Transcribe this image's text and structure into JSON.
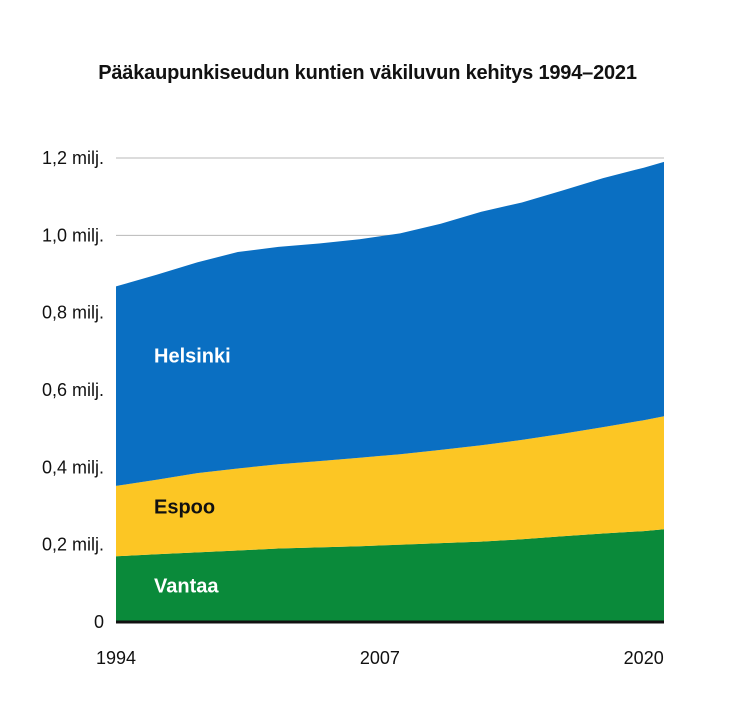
{
  "chart_data": {
    "type": "area",
    "stacked": true,
    "title": "Pääkaupunkiseudun kuntien väkiluvun kehitys 1994–2021",
    "xlabel": "",
    "ylabel": "",
    "x": [
      1994,
      1996,
      1998,
      2000,
      2002,
      2004,
      2006,
      2008,
      2010,
      2012,
      2014,
      2016,
      2018,
      2020,
      2021
    ],
    "xticks": [
      "1994",
      "2007",
      "2020"
    ],
    "yticks": [
      "0",
      "0,2 milj.",
      "0,4 milj.",
      "0,6 milj.",
      "0,8 milj.",
      "1,0 milj.",
      "1,2 milj."
    ],
    "ylim": [
      0,
      1.2
    ],
    "grid": true,
    "legend": "inline labels",
    "series": [
      {
        "name": "Vantaa",
        "color": "#0a8a3a",
        "label_color": "#ffffff",
        "values": [
          0.17,
          0.175,
          0.18,
          0.185,
          0.19,
          0.193,
          0.196,
          0.2,
          0.204,
          0.208,
          0.214,
          0.222,
          0.229,
          0.235,
          0.24
        ]
      },
      {
        "name": "Espoo",
        "color": "#fcc624",
        "label_color": "#111111",
        "values": [
          0.182,
          0.193,
          0.205,
          0.212,
          0.218,
          0.223,
          0.229,
          0.234,
          0.241,
          0.249,
          0.257,
          0.265,
          0.275,
          0.287,
          0.292
        ]
      },
      {
        "name": "Helsinki",
        "color": "#0a6fc2",
        "label_color": "#ffffff",
        "values": [
          0.516,
          0.53,
          0.545,
          0.56,
          0.562,
          0.563,
          0.565,
          0.571,
          0.585,
          0.604,
          0.614,
          0.629,
          0.644,
          0.653,
          0.658
        ]
      }
    ]
  }
}
